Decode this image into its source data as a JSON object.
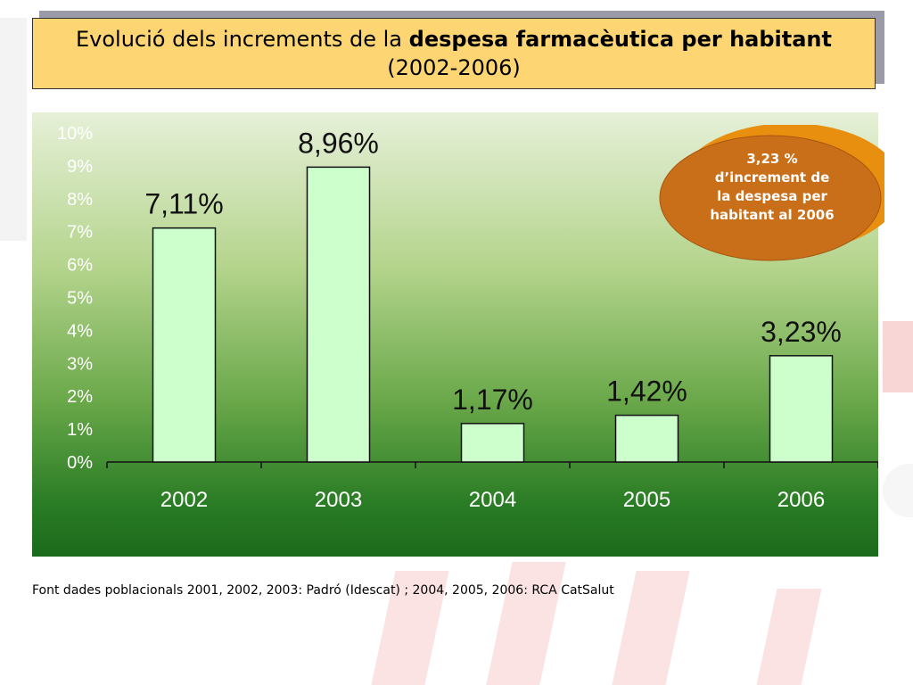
{
  "title": {
    "prefix": "Evolució dels increments de la",
    "bold": "despesa farmacèutica per habitant",
    "years": "(2002-2006)"
  },
  "callout": {
    "text": "3,23 % d’increment de la despesa per habitant al 2006",
    "color": "#d98a1c"
  },
  "source_note": "Font dades poblacionals 2001, 2002, 2003: Padró (Idescat) ;   2004, 2005, 2006: RCA CatSalut",
  "chart_data": {
    "type": "bar",
    "categories": [
      "2002",
      "2003",
      "2004",
      "2005",
      "2006"
    ],
    "values": [
      7.11,
      8.96,
      1.17,
      1.42,
      3.23
    ],
    "data_labels": [
      "7,11%",
      "8,96%",
      "1,17%",
      "1,42%",
      "3,23%"
    ],
    "y_ticks": [
      "0%",
      "1%",
      "2%",
      "3%",
      "4%",
      "5%",
      "6%",
      "7%",
      "8%",
      "9%",
      "10%"
    ],
    "ylim": [
      0,
      10
    ],
    "grid": false,
    "bar_color": "#ccffcc"
  }
}
